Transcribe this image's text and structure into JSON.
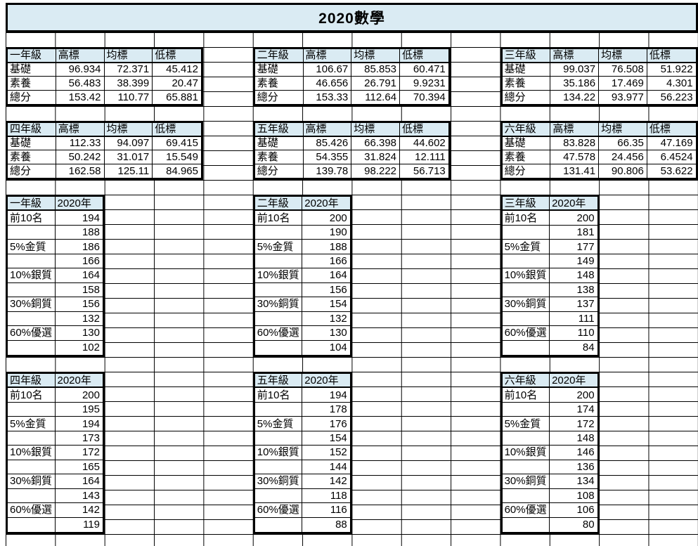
{
  "title": "2020數學",
  "colors": {
    "header_fill": "#daebf3",
    "grid_line": "#000000",
    "table_border": "#000000",
    "background": "#ffffff"
  },
  "stats_columns": [
    "高標",
    "均標",
    "低標"
  ],
  "stats_tables": [
    {
      "grade": "一年級",
      "rows": [
        {
          "label": "基礎",
          "values": [
            "96.934",
            "72.371",
            "45.412"
          ]
        },
        {
          "label": "素養",
          "values": [
            "56.483",
            "38.399",
            "20.47"
          ]
        },
        {
          "label": "總分",
          "values": [
            "153.42",
            "110.77",
            "65.881"
          ]
        }
      ]
    },
    {
      "grade": "二年級",
      "rows": [
        {
          "label": "基礎",
          "values": [
            "106.67",
            "85.853",
            "60.471"
          ]
        },
        {
          "label": "素養",
          "values": [
            "46.656",
            "26.791",
            "9.9231"
          ]
        },
        {
          "label": "總分",
          "values": [
            "153.33",
            "112.64",
            "70.394"
          ]
        }
      ]
    },
    {
      "grade": "三年級",
      "rows": [
        {
          "label": "基礎",
          "values": [
            "99.037",
            "76.508",
            "51.922"
          ]
        },
        {
          "label": "素養",
          "values": [
            "35.186",
            "17.469",
            "4.301"
          ]
        },
        {
          "label": "總分",
          "values": [
            "134.22",
            "93.977",
            "56.223"
          ]
        }
      ]
    },
    {
      "grade": "四年級",
      "rows": [
        {
          "label": "基礎",
          "values": [
            "112.33",
            "94.097",
            "69.415"
          ]
        },
        {
          "label": "素養",
          "values": [
            "50.242",
            "31.017",
            "15.549"
          ]
        },
        {
          "label": "總分",
          "values": [
            "162.58",
            "125.11",
            "84.965"
          ]
        }
      ]
    },
    {
      "grade": "五年級",
      "rows": [
        {
          "label": "基礎",
          "values": [
            "85.426",
            "66.398",
            "44.602"
          ]
        },
        {
          "label": "素養",
          "values": [
            "54.355",
            "31.824",
            "12.111"
          ]
        },
        {
          "label": "總分",
          "values": [
            "139.78",
            "98.222",
            "56.713"
          ]
        }
      ]
    },
    {
      "grade": "六年級",
      "rows": [
        {
          "label": "基礎",
          "values": [
            "83.828",
            "66.35",
            "47.169"
          ]
        },
        {
          "label": "素養",
          "values": [
            "47.578",
            "24.456",
            "6.4524"
          ]
        },
        {
          "label": "總分",
          "values": [
            "131.41",
            "90.806",
            "53.622"
          ]
        }
      ]
    }
  ],
  "rank_year_label": "2020年",
  "rank_tables": [
    {
      "grade": "一年級",
      "rows": [
        [
          "前10名",
          "194"
        ],
        [
          "",
          "188"
        ],
        [
          "5%金質",
          "186"
        ],
        [
          "",
          "166"
        ],
        [
          "10%銀質",
          "164"
        ],
        [
          "",
          "158"
        ],
        [
          "30%銅質",
          "156"
        ],
        [
          "",
          "132"
        ],
        [
          "60%優選",
          "130"
        ],
        [
          "",
          "102"
        ]
      ]
    },
    {
      "grade": "二年級",
      "rows": [
        [
          "前10名",
          "200"
        ],
        [
          "",
          "190"
        ],
        [
          "5%金質",
          "188"
        ],
        [
          "",
          "166"
        ],
        [
          "10%銀質",
          "164"
        ],
        [
          "",
          "156"
        ],
        [
          "30%銅質",
          "154"
        ],
        [
          "",
          "132"
        ],
        [
          "60%優選",
          "130"
        ],
        [
          "",
          "104"
        ]
      ]
    },
    {
      "grade": "三年級",
      "rows": [
        [
          "前10名",
          "200"
        ],
        [
          "",
          "181"
        ],
        [
          "5%金質",
          "177"
        ],
        [
          "",
          "149"
        ],
        [
          "10%銀質",
          "148"
        ],
        [
          "",
          "138"
        ],
        [
          "30%銅質",
          "137"
        ],
        [
          "",
          "111"
        ],
        [
          "60%優選",
          "110"
        ],
        [
          "",
          "84"
        ]
      ]
    },
    {
      "grade": "四年級",
      "rows": [
        [
          "前10名",
          "200"
        ],
        [
          "",
          "195"
        ],
        [
          "5%金質",
          "194"
        ],
        [
          "",
          "173"
        ],
        [
          "10%銀質",
          "172"
        ],
        [
          "",
          "165"
        ],
        [
          "30%銅質",
          "164"
        ],
        [
          "",
          "143"
        ],
        [
          "60%優選",
          "142"
        ],
        [
          "",
          "119"
        ]
      ]
    },
    {
      "grade": "五年級",
      "rows": [
        [
          "前10名",
          "194"
        ],
        [
          "",
          "178"
        ],
        [
          "5%金質",
          "176"
        ],
        [
          "",
          "154"
        ],
        [
          "10%銀質",
          "152"
        ],
        [
          "",
          "144"
        ],
        [
          "30%銅質",
          "142"
        ],
        [
          "",
          "118"
        ],
        [
          "60%優選",
          "116"
        ],
        [
          "",
          "88"
        ]
      ]
    },
    {
      "grade": "六年級",
      "rows": [
        [
          "前10名",
          "200"
        ],
        [
          "",
          "174"
        ],
        [
          "5%金質",
          "172"
        ],
        [
          "",
          "148"
        ],
        [
          "10%銀質",
          "146"
        ],
        [
          "",
          "136"
        ],
        [
          "30%銅質",
          "134"
        ],
        [
          "",
          "108"
        ],
        [
          "60%優選",
          "106"
        ],
        [
          "",
          "80"
        ]
      ]
    }
  ]
}
